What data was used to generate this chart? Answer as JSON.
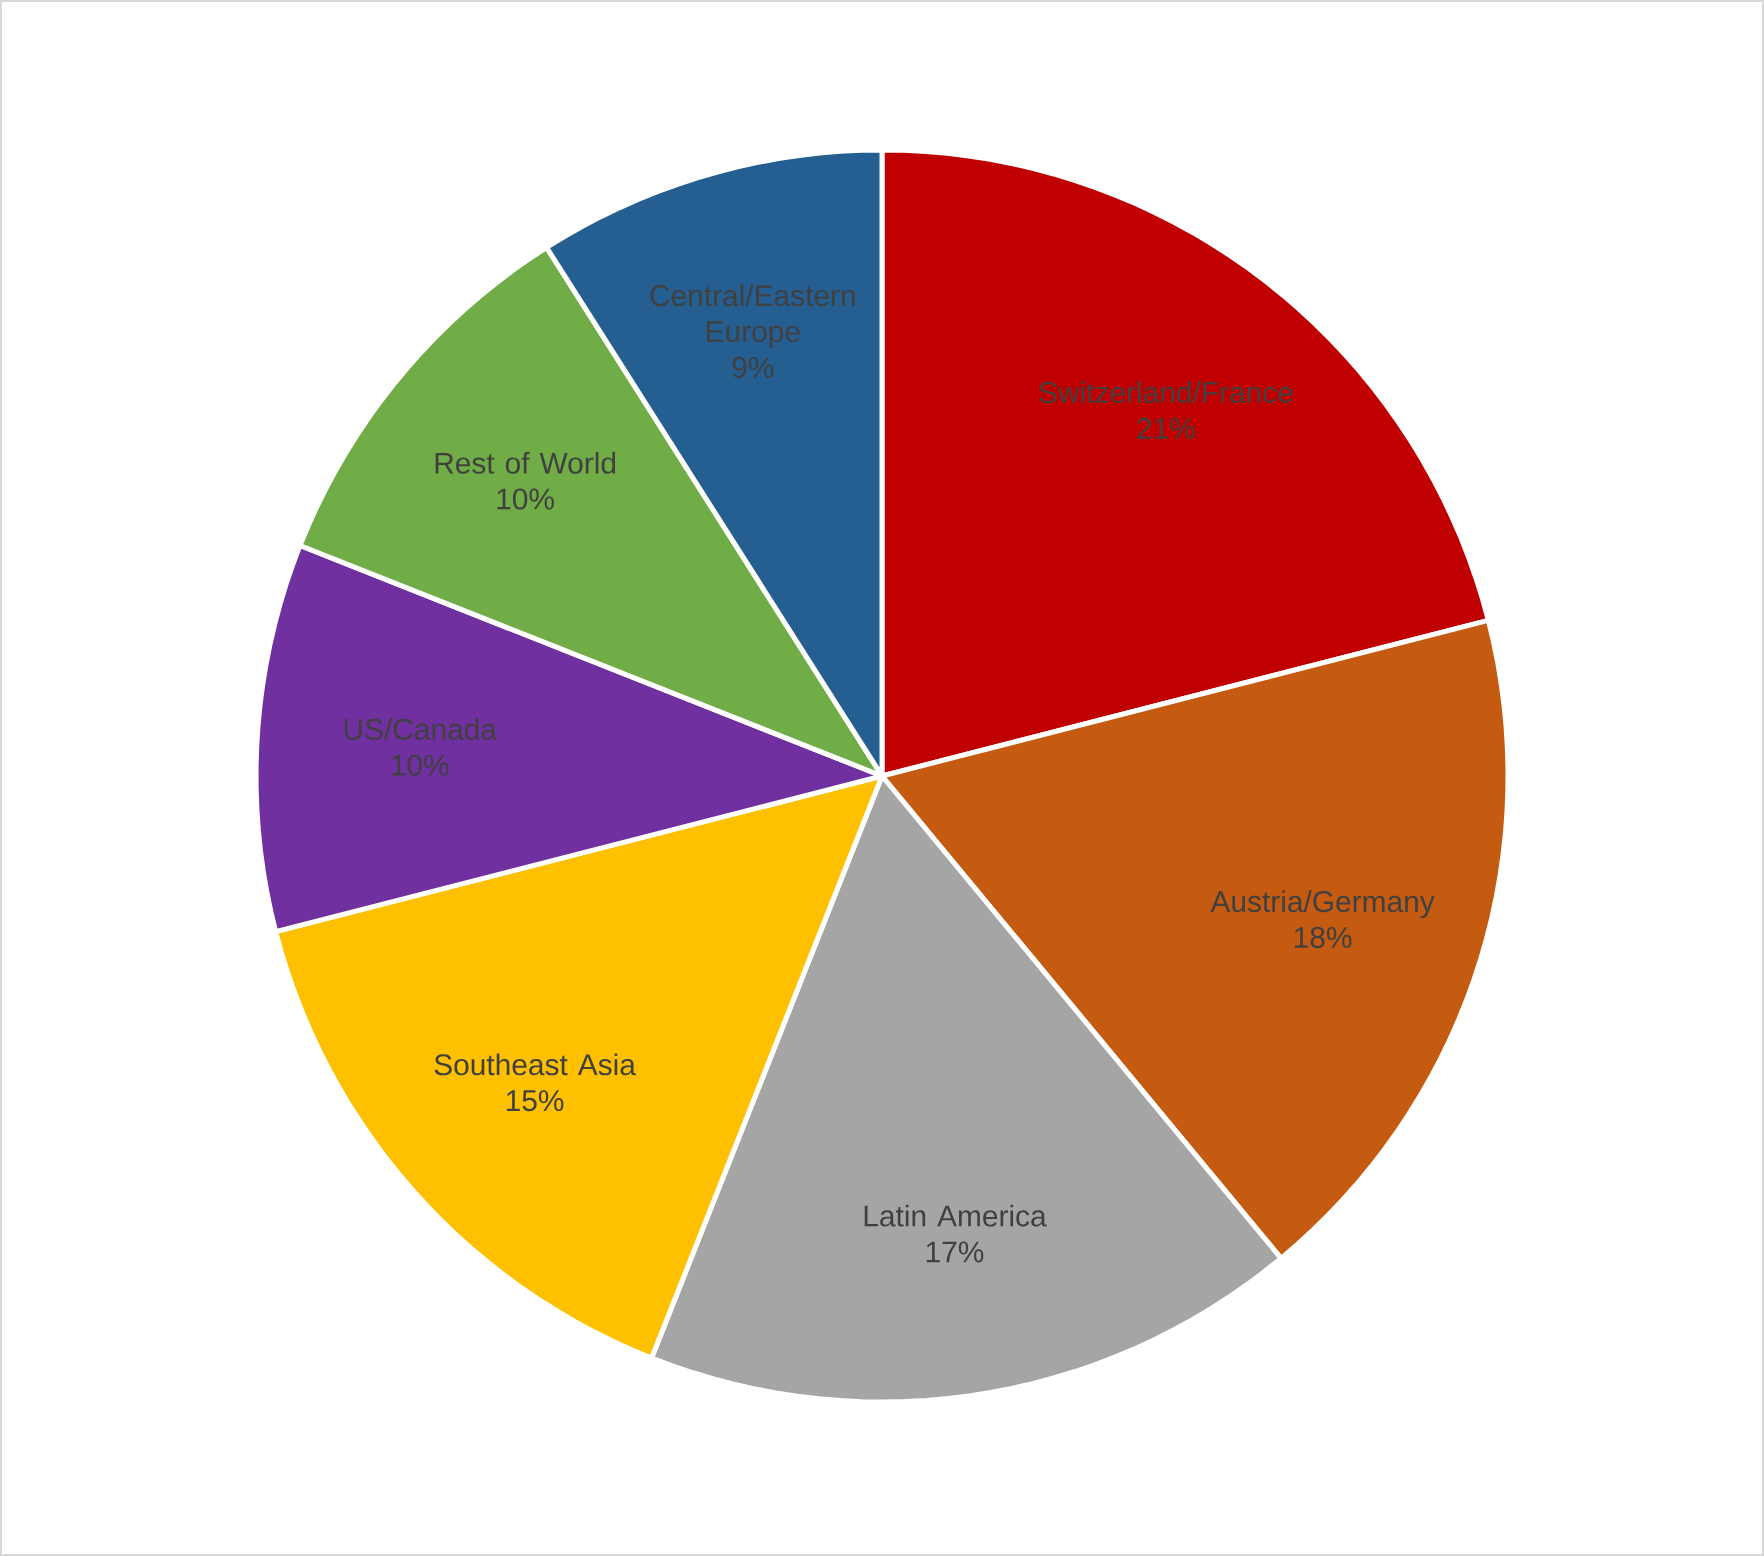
{
  "chart_data": {
    "type": "pie",
    "categories": [
      "Switzerland/France",
      "Austria/Germany",
      "Latin America",
      "Southeast Asia",
      "US/Canada",
      "Rest of World",
      "Central/Eastern Europe"
    ],
    "values": [
      21,
      18,
      17,
      15,
      10,
      10,
      9
    ],
    "value_labels": [
      "21%",
      "18%",
      "17%",
      "15%",
      "10%",
      "10%",
      "9%"
    ],
    "colors": [
      "#c00000",
      "#c55a11",
      "#a5a5a5",
      "#ffc000",
      "#7030a0",
      "#70ad47",
      "#255e91"
    ]
  }
}
